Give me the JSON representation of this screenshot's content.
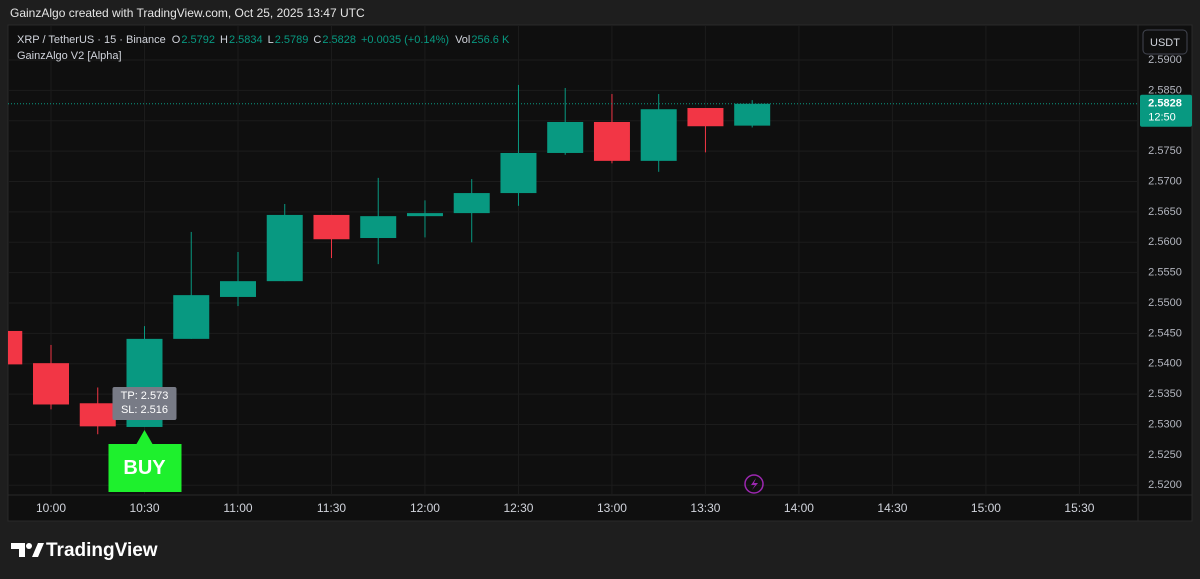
{
  "header": {
    "text": "GainzAlgo created with TradingView.com, Oct 25, 2025 13:47 UTC"
  },
  "chart_data": {
    "type": "candlestick",
    "symbol": "XRP / TetherUS · 15 · Binance",
    "indicator": "GainzAlgo V2 [Alpha]",
    "currency": "USDT",
    "legend_values": [
      {
        "label": "O",
        "value": "2.5792"
      },
      {
        "label": "H",
        "value": "2.5834"
      },
      {
        "label": "L",
        "value": "2.5789"
      },
      {
        "label": "C",
        "value": "2.5828"
      }
    ],
    "change": "+0.0035 (+0.14%)",
    "volume": {
      "label": "Vol",
      "value": "256.6 K"
    },
    "x": [
      585,
      600,
      615,
      630,
      645,
      660,
      675,
      690,
      705,
      720,
      735,
      750,
      765,
      780,
      795,
      810,
      825
    ],
    "open": [
      2.5454,
      2.5401,
      2.5335,
      2.5296,
      2.5441,
      2.551,
      2.5536,
      2.5645,
      2.5607,
      2.5643,
      2.5648,
      2.5681,
      2.5747,
      2.5798,
      2.5734,
      2.5821,
      2.5792
    ],
    "high": [
      2.5454,
      2.5431,
      2.5361,
      2.5462,
      2.5617,
      2.5584,
      2.5663,
      2.5645,
      2.5706,
      2.5669,
      2.5704,
      2.5859,
      2.5854,
      2.5844,
      2.5844,
      2.5821,
      2.5834
    ],
    "low": [
      2.5399,
      2.5325,
      2.5284,
      2.5296,
      2.5441,
      2.5495,
      2.5536,
      2.5574,
      2.5564,
      2.5608,
      2.56,
      2.566,
      2.5744,
      2.573,
      2.5716,
      2.5748,
      2.5789
    ],
    "close": [
      2.5399,
      2.5333,
      2.5297,
      2.5441,
      2.5513,
      2.5536,
      2.5645,
      2.5605,
      2.5643,
      2.5648,
      2.5681,
      2.5747,
      2.5798,
      2.5734,
      2.5819,
      2.5791,
      2.5828
    ],
    "up_color": "#089981",
    "down_color": "#f23645",
    "xlim": [
      586.2,
      948.8
    ],
    "xticks": [
      {
        "value": 600,
        "label": "10:00"
      },
      {
        "value": 630,
        "label": "10:30"
      },
      {
        "value": 660,
        "label": "11:00"
      },
      {
        "value": 690,
        "label": "11:30"
      },
      {
        "value": 720,
        "label": "12:00"
      },
      {
        "value": 750,
        "label": "12:30"
      },
      {
        "value": 780,
        "label": "13:00"
      },
      {
        "value": 810,
        "label": "13:30"
      },
      {
        "value": 840,
        "label": "14:00"
      },
      {
        "value": 870,
        "label": "14:30"
      },
      {
        "value": 900,
        "label": "15:00"
      },
      {
        "value": 930,
        "label": "15:30"
      }
    ],
    "ylim": [
      2.5184,
      2.5956
    ],
    "yticks": [
      {
        "value": 2.52,
        "label": "2.5200"
      },
      {
        "value": 2.525,
        "label": "2.5250"
      },
      {
        "value": 2.53,
        "label": "2.5300"
      },
      {
        "value": 2.535,
        "label": "2.5350"
      },
      {
        "value": 2.54,
        "label": "2.5400"
      },
      {
        "value": 2.545,
        "label": "2.5450"
      },
      {
        "value": 2.55,
        "label": "2.5500"
      },
      {
        "value": 2.555,
        "label": "2.5550"
      },
      {
        "value": 2.56,
        "label": "2.5600"
      },
      {
        "value": 2.565,
        "label": "2.5650"
      },
      {
        "value": 2.57,
        "label": "2.5700"
      },
      {
        "value": 2.575,
        "label": "2.5750"
      },
      {
        "value": 2.58,
        "label": "2.5800"
      },
      {
        "value": 2.585,
        "label": "2.5850"
      },
      {
        "value": 2.59,
        "label": "2.5900"
      }
    ],
    "grid": true,
    "last_price": {
      "value": 2.5828,
      "label": "2.5828"
    },
    "countdown": "12:50",
    "signal": {
      "x": 630,
      "label": "BUY",
      "tp": "TP: 2.573",
      "sl": "SL: 2.516",
      "color": "#1ef02d"
    }
  },
  "footer": {
    "brand": "TradingView"
  }
}
